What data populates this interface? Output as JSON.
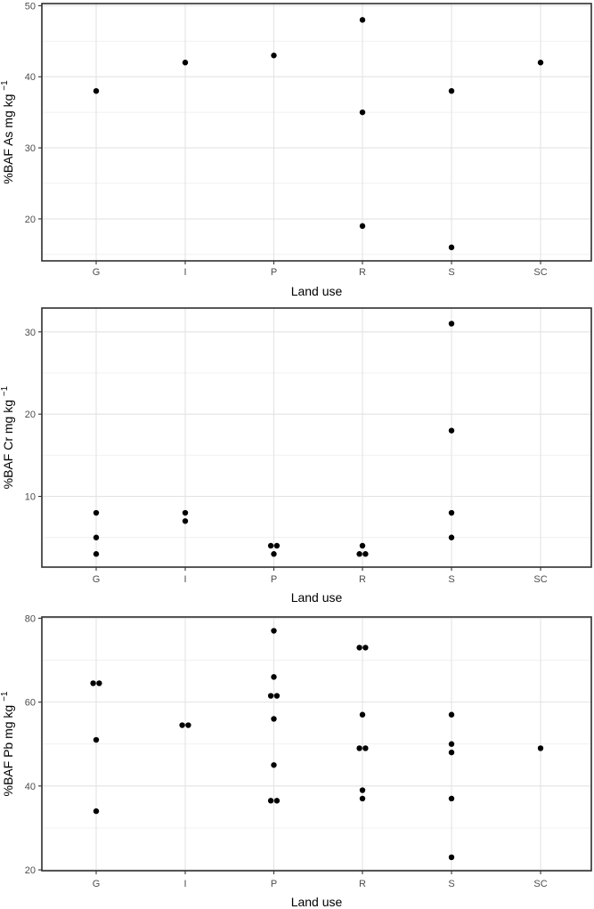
{
  "figure": {
    "background": "#ffffff",
    "description": "Three stacked scatter (strip) plots of percent bioaccumulation factor by land use"
  },
  "style": {
    "point_color": "#000000",
    "panel_background": "#ffffff",
    "panel_border_color": "#2e2e2e",
    "grid_major_color": "#e3e3e3",
    "grid_minor_color": "#efefef",
    "tick_mark_color": "#333333",
    "tick_label_color": "#4d4d4d",
    "axis_title_color": "#000000"
  },
  "chart_data": [
    {
      "type": "scatter",
      "title": "",
      "xlabel": "Land use",
      "ylabel": "%BAF As mg kg⁻¹",
      "ylabel_main": "%BAF As mg kg",
      "ylabel_sup": "−1",
      "categories": [
        "G",
        "I",
        "P",
        "R",
        "S",
        "SC"
      ],
      "yticks": [
        20,
        30,
        40,
        50
      ],
      "yminor": [
        15,
        25,
        35,
        45
      ],
      "ylim": [
        14.1,
        50.3
      ],
      "grid": true,
      "legend": "none",
      "series": [
        {
          "name": "%BAF As",
          "points": [
            {
              "cat": "G",
              "y": 38,
              "dx": 0
            },
            {
              "cat": "I",
              "y": 42,
              "dx": 0
            },
            {
              "cat": "P",
              "y": 43,
              "dx": 0
            },
            {
              "cat": "R",
              "y": 48,
              "dx": 0
            },
            {
              "cat": "R",
              "y": 35,
              "dx": 0
            },
            {
              "cat": "R",
              "y": 19,
              "dx": 0
            },
            {
              "cat": "S",
              "y": 38,
              "dx": 0
            },
            {
              "cat": "S",
              "y": 16,
              "dx": 0
            },
            {
              "cat": "SC",
              "y": 42,
              "dx": 0
            }
          ]
        }
      ]
    },
    {
      "type": "scatter",
      "title": "",
      "xlabel": "Land use",
      "ylabel": "%BAF Cr mg kg⁻¹",
      "ylabel_main": "%BAF Cr mg kg",
      "ylabel_sup": "−1",
      "categories": [
        "G",
        "I",
        "P",
        "R",
        "S",
        "SC"
      ],
      "yticks": [
        10,
        20,
        30
      ],
      "yminor": [
        5,
        15,
        25
      ],
      "ylim": [
        1.4,
        32.9
      ],
      "grid": true,
      "legend": "none",
      "series": [
        {
          "name": "%BAF Cr",
          "points": [
            {
              "cat": "G",
              "y": 8,
              "dx": 0
            },
            {
              "cat": "G",
              "y": 5,
              "dx": 0
            },
            {
              "cat": "G",
              "y": 3,
              "dx": 0
            },
            {
              "cat": "I",
              "y": 8,
              "dx": 0
            },
            {
              "cat": "I",
              "y": 7,
              "dx": 0
            },
            {
              "cat": "P",
              "y": 4,
              "dx": -3.4
            },
            {
              "cat": "P",
              "y": 4,
              "dx": 3.4
            },
            {
              "cat": "P",
              "y": 3,
              "dx": 0
            },
            {
              "cat": "R",
              "y": 4,
              "dx": 0
            },
            {
              "cat": "R",
              "y": 3,
              "dx": -3.4
            },
            {
              "cat": "R",
              "y": 3,
              "dx": 3.4
            },
            {
              "cat": "S",
              "y": 31,
              "dx": 0
            },
            {
              "cat": "S",
              "y": 18,
              "dx": 0
            },
            {
              "cat": "S",
              "y": 8,
              "dx": 0
            },
            {
              "cat": "S",
              "y": 5,
              "dx": 0
            }
          ]
        }
      ]
    },
    {
      "type": "scatter",
      "title": "",
      "xlabel": "Land use",
      "ylabel": "%BAF Pb mg kg⁻¹",
      "ylabel_main": "%BAF Pb mg kg",
      "ylabel_sup": "−1",
      "categories": [
        "G",
        "I",
        "P",
        "R",
        "S",
        "SC"
      ],
      "yticks": [
        20,
        40,
        60,
        80
      ],
      "yminor": [
        30,
        50,
        70
      ],
      "ylim": [
        19.8,
        80.3
      ],
      "grid": true,
      "legend": "none",
      "series": [
        {
          "name": "%BAF Pb",
          "points": [
            {
              "cat": "G",
              "y": 64.5,
              "dx": -3.4
            },
            {
              "cat": "G",
              "y": 64.5,
              "dx": 3.4
            },
            {
              "cat": "G",
              "y": 51,
              "dx": 0
            },
            {
              "cat": "G",
              "y": 34,
              "dx": 0
            },
            {
              "cat": "I",
              "y": 54.5,
              "dx": -3.4
            },
            {
              "cat": "I",
              "y": 54.5,
              "dx": 3.4
            },
            {
              "cat": "P",
              "y": 77,
              "dx": 0
            },
            {
              "cat": "P",
              "y": 66,
              "dx": 0
            },
            {
              "cat": "P",
              "y": 61.5,
              "dx": -3.4
            },
            {
              "cat": "P",
              "y": 61.5,
              "dx": 3.4
            },
            {
              "cat": "P",
              "y": 56,
              "dx": 0
            },
            {
              "cat": "P",
              "y": 45,
              "dx": 0
            },
            {
              "cat": "P",
              "y": 36.5,
              "dx": -3.4
            },
            {
              "cat": "P",
              "y": 36.5,
              "dx": 3.4
            },
            {
              "cat": "R",
              "y": 73,
              "dx": -3.4
            },
            {
              "cat": "R",
              "y": 73,
              "dx": 3.4
            },
            {
              "cat": "R",
              "y": 57,
              "dx": 0
            },
            {
              "cat": "R",
              "y": 49,
              "dx": -3.4
            },
            {
              "cat": "R",
              "y": 49,
              "dx": 3.4
            },
            {
              "cat": "R",
              "y": 39,
              "dx": 0
            },
            {
              "cat": "R",
              "y": 37,
              "dx": 0
            },
            {
              "cat": "S",
              "y": 57,
              "dx": 0
            },
            {
              "cat": "S",
              "y": 50,
              "dx": 0
            },
            {
              "cat": "S",
              "y": 48,
              "dx": 0
            },
            {
              "cat": "S",
              "y": 37,
              "dx": 0
            },
            {
              "cat": "S",
              "y": 23,
              "dx": 0
            },
            {
              "cat": "SC",
              "y": 49,
              "dx": 0
            }
          ]
        }
      ]
    }
  ]
}
